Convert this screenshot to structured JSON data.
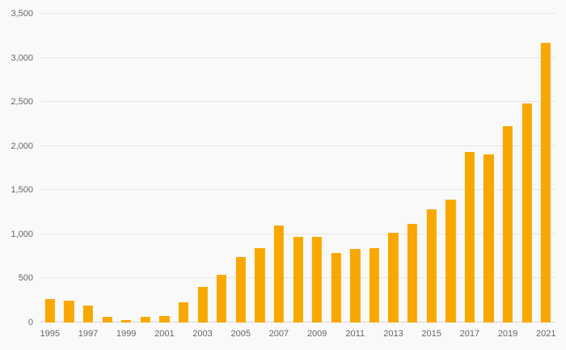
{
  "chart_data": {
    "type": "bar",
    "title": "",
    "xlabel": "",
    "ylabel": "",
    "categories": [
      "1995",
      "1996",
      "1997",
      "1998",
      "1999",
      "2000",
      "2001",
      "2002",
      "2003",
      "2004",
      "2005",
      "2006",
      "2007",
      "2008",
      "2009",
      "2010",
      "2011",
      "2012",
      "2013",
      "2014",
      "2015",
      "2016",
      "2017",
      "2018",
      "2019",
      "2020",
      "2021"
    ],
    "values": [
      270,
      250,
      190,
      60,
      25,
      65,
      70,
      230,
      400,
      545,
      740,
      840,
      1100,
      970,
      970,
      790,
      835,
      840,
      1020,
      1120,
      1285,
      1390,
      1930,
      1910,
      2230,
      2480,
      3170
    ],
    "ylim": [
      0,
      3500
    ],
    "grid": true,
    "legend": "none",
    "y_ticks": [
      {
        "value": 0,
        "label": "0"
      },
      {
        "value": 500,
        "label": "500"
      },
      {
        "value": 1000,
        "label": "1,000"
      },
      {
        "value": 1500,
        "label": "1,500"
      },
      {
        "value": 2000,
        "label": "2,000"
      },
      {
        "value": 2500,
        "label": "2,500"
      },
      {
        "value": 3000,
        "label": "3,000"
      },
      {
        "value": 3500,
        "label": "3,500"
      }
    ],
    "x_tick_labels": [
      "1995",
      "1997",
      "1999",
      "2001",
      "2003",
      "2005",
      "2007",
      "2009",
      "2011",
      "2013",
      "2015",
      "2017",
      "2019",
      "2021"
    ],
    "bar_color": "#f8a800",
    "background_color": "#f9f9f9",
    "gridline_color": "#e7e7e7",
    "tick_label_color": "#666666"
  }
}
